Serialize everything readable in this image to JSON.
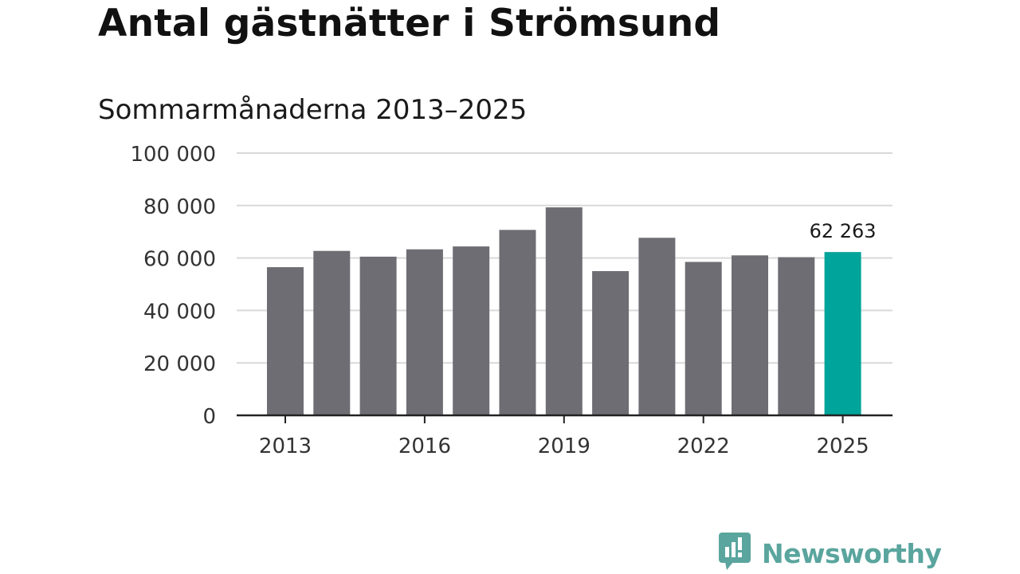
{
  "title": "Antal gästnätter i Strömsund",
  "subtitle": "Sommarmånaderna 2013–2025",
  "brand": {
    "name": "Newsworthy",
    "color": "#5aa59e",
    "icon": "newsworthy-logo-icon"
  },
  "colors": {
    "bar": "#6e6d73",
    "highlight": "#00a49a",
    "grid": "#d9d9d9",
    "axis": "#222222"
  },
  "chart_data": {
    "type": "bar",
    "categories": [
      "2013",
      "2014",
      "2015",
      "2016",
      "2017",
      "2018",
      "2019",
      "2020",
      "2021",
      "2022",
      "2023",
      "2024",
      "2025"
    ],
    "values": [
      56500,
      62700,
      60500,
      63300,
      64400,
      70700,
      79300,
      55000,
      67700,
      58500,
      61000,
      60300,
      62263
    ],
    "highlight_index": 12,
    "data_labels": [
      {
        "index": 12,
        "text": "62 263"
      }
    ],
    "x_tick_labels": [
      "2013",
      "2016",
      "2019",
      "2022",
      "2025"
    ],
    "y_tick_labels": [
      "0",
      "20 000",
      "40 000",
      "60 000",
      "80 000",
      "100 000"
    ],
    "y_ticks": [
      0,
      20000,
      40000,
      60000,
      80000,
      100000
    ],
    "ylim": [
      0,
      100000
    ],
    "grid": true,
    "legend": false
  }
}
